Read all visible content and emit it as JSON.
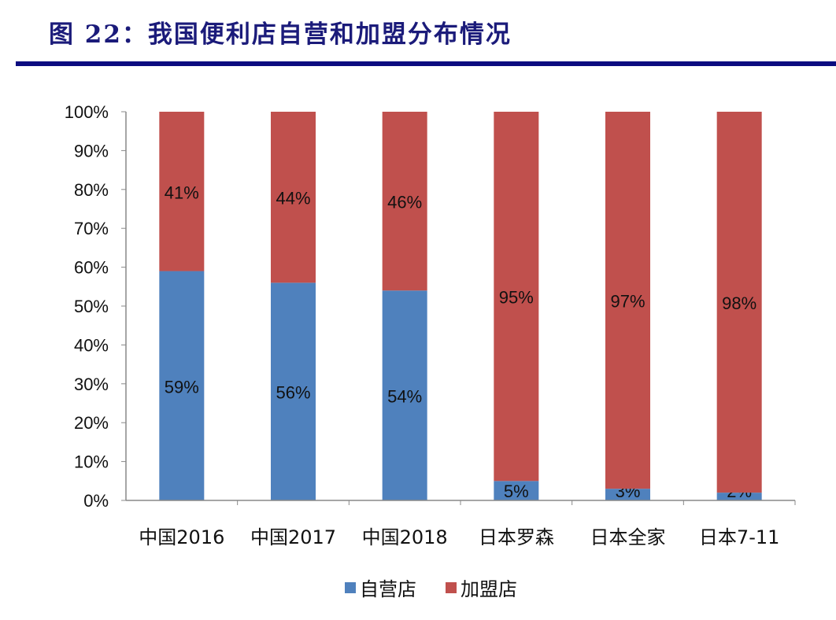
{
  "title": "图 22：我国便利店自营和加盟分布情况",
  "colors": {
    "title": "#1b1b7a",
    "self_operated": "#4F81BD",
    "franchise": "#C0504D"
  },
  "chart_data": {
    "type": "bar",
    "stacked": true,
    "categories": [
      "中国2016",
      "中国2017",
      "中国2018",
      "日本罗森",
      "日本全家",
      "日本7-11"
    ],
    "series": [
      {
        "name": "自营店",
        "values": [
          59,
          56,
          54,
          5,
          3,
          2
        ],
        "labels": [
          "59%",
          "56%",
          "54%",
          "5%",
          "3%",
          "2%"
        ]
      },
      {
        "name": "加盟店",
        "values": [
          41,
          44,
          46,
          95,
          97,
          98
        ],
        "labels": [
          "41%",
          "44%",
          "46%",
          "95%",
          "97%",
          "98%"
        ]
      }
    ],
    "ylim": [
      0,
      100
    ],
    "yticks": [
      "0%",
      "10%",
      "20%",
      "30%",
      "40%",
      "50%",
      "60%",
      "70%",
      "80%",
      "90%",
      "100%"
    ],
    "legend": "bottom",
    "grid": false
  }
}
